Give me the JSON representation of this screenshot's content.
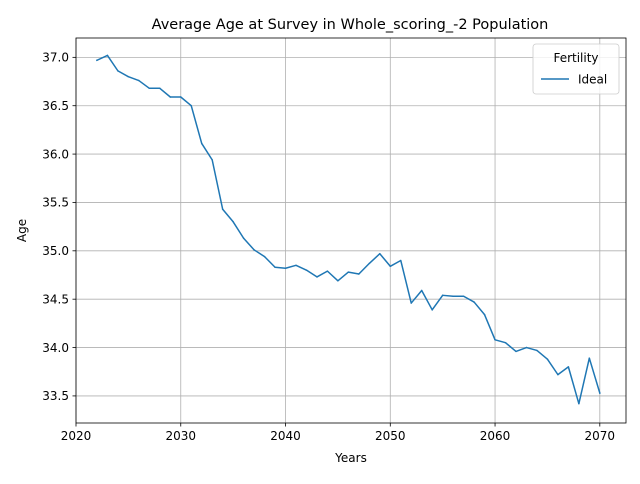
{
  "chart_data": {
    "type": "line",
    "title": "Average Age at Survey in Whole_scoring_-2 Population",
    "xlabel": "Years",
    "ylabel": "Age",
    "xlim": [
      2020,
      2072.5
    ],
    "ylim": [
      33.22,
      37.2
    ],
    "xticks": [
      2020,
      2030,
      2040,
      2050,
      2060,
      2070
    ],
    "yticks": [
      33.5,
      34.0,
      34.5,
      35.0,
      35.5,
      36.0,
      36.5,
      37.0
    ],
    "grid": true,
    "legend": {
      "title": "Fertility",
      "position": "top-right"
    },
    "series": [
      {
        "name": "Ideal",
        "color": "#1f77b4",
        "x": [
          2022,
          2023,
          2024,
          2025,
          2026,
          2027,
          2028,
          2029,
          2030,
          2031,
          2032,
          2033,
          2034,
          2035,
          2036,
          2037,
          2038,
          2039,
          2040,
          2041,
          2042,
          2043,
          2044,
          2045,
          2046,
          2047,
          2048,
          2049,
          2050,
          2051,
          2052,
          2053,
          2054,
          2055,
          2056,
          2057,
          2058,
          2059,
          2060,
          2061,
          2062,
          2063,
          2064,
          2065,
          2066,
          2067,
          2068,
          2069,
          2070
        ],
        "values": [
          36.97,
          37.02,
          36.86,
          36.8,
          36.76,
          36.68,
          36.68,
          36.59,
          36.59,
          36.5,
          36.11,
          35.94,
          35.43,
          35.3,
          35.13,
          35.01,
          34.94,
          34.83,
          34.82,
          34.85,
          34.8,
          34.73,
          34.79,
          34.69,
          34.78,
          34.76,
          34.87,
          34.97,
          34.84,
          34.9,
          34.46,
          34.59,
          34.39,
          34.54,
          34.53,
          34.53,
          34.47,
          34.34,
          34.08,
          34.05,
          33.96,
          34.0,
          33.97,
          33.88,
          33.72,
          33.8,
          33.42,
          33.89,
          33.53
        ]
      }
    ]
  }
}
